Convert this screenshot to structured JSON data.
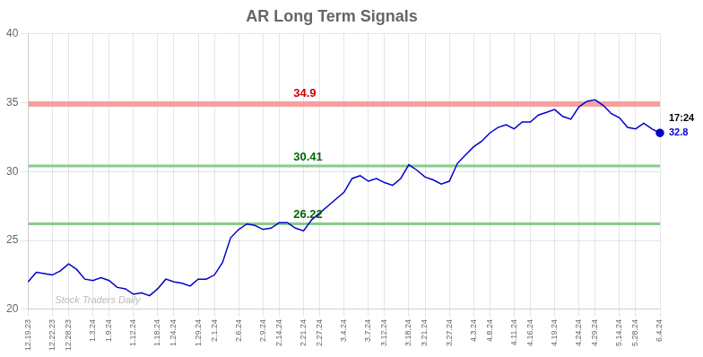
{
  "chart_data": {
    "type": "line",
    "title": "AR Long Term Signals",
    "categories": [
      "12.19.23",
      null,
      null,
      "12.22.23",
      null,
      "12.28.23",
      null,
      null,
      "1.3.24",
      null,
      "1.9.24",
      null,
      null,
      "1.12.24",
      null,
      null,
      "1.18.24",
      null,
      "1.24.24",
      null,
      null,
      "1.29.24",
      null,
      "2.1.24",
      null,
      null,
      "2.6.24",
      null,
      null,
      "2.9.24",
      null,
      "2.14.24",
      null,
      null,
      "2.21.24",
      null,
      "2.27.24",
      null,
      null,
      "3.4.24",
      null,
      null,
      "3.7.24",
      null,
      "3.12.24",
      null,
      null,
      "3.18.24",
      null,
      "3.21.24",
      null,
      null,
      "3.27.24",
      null,
      null,
      "4.3.24",
      null,
      "4.8.24",
      null,
      null,
      "4.11.24",
      null,
      "4.16.24",
      null,
      null,
      "4.19.24",
      null,
      null,
      "4.24.24",
      null,
      "4.29.24",
      null,
      null,
      "5.14.24",
      null,
      "5.28.24",
      null,
      null,
      "6.4.24"
    ],
    "values": [
      22.0,
      22.7,
      22.6,
      22.5,
      22.8,
      23.3,
      22.9,
      22.2,
      22.1,
      22.3,
      22.1,
      21.6,
      21.5,
      21.1,
      21.2,
      21.0,
      21.5,
      22.2,
      22.0,
      21.9,
      21.7,
      22.2,
      22.2,
      22.5,
      23.4,
      25.2,
      25.8,
      26.2,
      26.1,
      25.8,
      25.9,
      26.3,
      26.3,
      25.9,
      25.7,
      26.5,
      27.0,
      27.5,
      28.0,
      28.5,
      29.5,
      29.7,
      29.3,
      29.5,
      29.2,
      29.0,
      29.5,
      30.5,
      30.1,
      29.6,
      29.4,
      29.1,
      29.3,
      30.6,
      31.2,
      31.8,
      32.2,
      32.8,
      33.2,
      33.4,
      33.1,
      33.6,
      33.6,
      34.1,
      34.3,
      34.5,
      34.0,
      33.8,
      34.7,
      35.1,
      35.2,
      34.8,
      34.2,
      33.9,
      33.2,
      33.1,
      33.5,
      33.1,
      32.8
    ],
    "color": "#0000cc",
    "ylim": [
      20,
      40
    ],
    "yticks": [
      20,
      25,
      30,
      35,
      40
    ],
    "grid": true,
    "annotations": [
      {
        "type": "hline",
        "y": 34.9,
        "label": "34.9",
        "color": "#f4a0a0",
        "label_color": "#cc0000"
      },
      {
        "type": "hline",
        "y": 30.41,
        "label": "30.41",
        "color": "#88cc88",
        "label_color": "#006600"
      },
      {
        "type": "hline",
        "y": 26.22,
        "label": "26.22",
        "color": "#88cc88",
        "label_color": "#006600"
      },
      {
        "type": "text",
        "text": "Stock Traders Daily",
        "color": "#bbbbbb"
      },
      {
        "type": "last_point",
        "label": "17:24",
        "value_label": "32.8",
        "color": "#0000cc"
      }
    ]
  }
}
